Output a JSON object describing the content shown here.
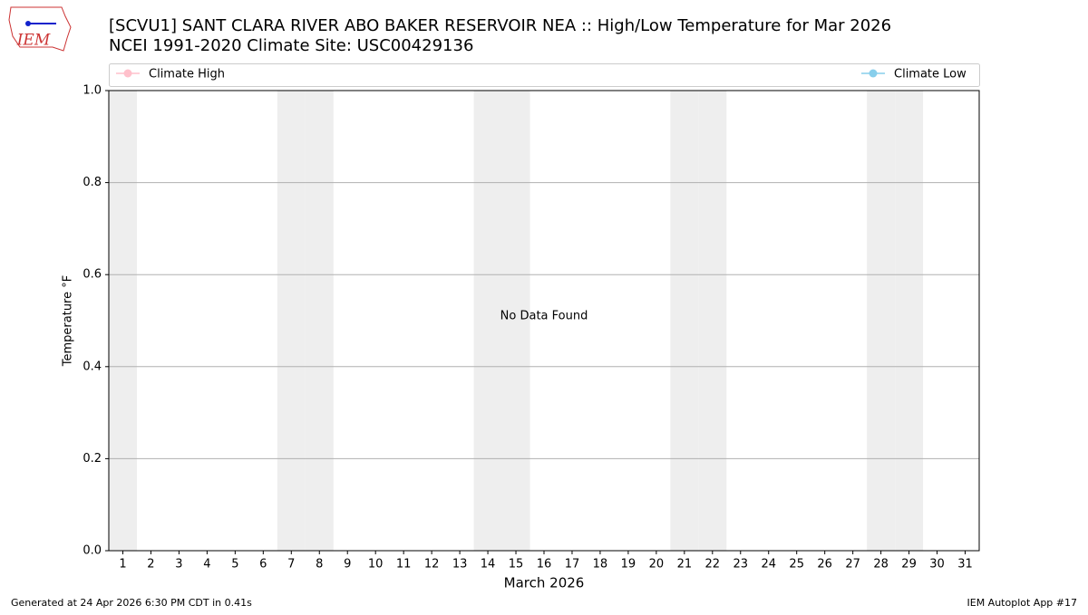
{
  "logo_text": "IEM",
  "chart_data": {
    "type": "line",
    "title": "[SCVU1] SANT CLARA RIVER ABO BAKER RESERVOIR NEA :: High/Low Temperature for Mar 2026",
    "subtitle": "NCEI 1991-2020 Climate Site: USC00429136",
    "x_label": "March 2026",
    "y_label": "Temperature °F",
    "annotation": "No Data Found",
    "x": [
      1,
      2,
      3,
      4,
      5,
      6,
      7,
      8,
      9,
      10,
      11,
      12,
      13,
      14,
      15,
      16,
      17,
      18,
      19,
      20,
      21,
      22,
      23,
      24,
      25,
      26,
      27,
      28,
      29,
      30,
      31
    ],
    "xlim": [
      0.5,
      31.5
    ],
    "ylim": [
      0,
      1
    ],
    "yticks": [
      {
        "value": 0,
        "label": "0.0"
      },
      0.2,
      0.4,
      0.6,
      0.8,
      {
        "value": 1,
        "label": "1.0"
      }
    ],
    "grid": true,
    "series": [
      {
        "name": "Climate High",
        "color": "pink",
        "values": [
          null,
          null,
          null,
          null,
          null,
          null,
          null,
          null,
          null,
          null,
          null,
          null,
          null,
          null,
          null,
          null,
          null,
          null,
          null,
          null,
          null,
          null,
          null,
          null,
          null,
          null,
          null,
          null,
          null,
          null,
          null
        ]
      },
      {
        "name": "Climate Low",
        "color": "skyblue",
        "values": [
          null,
          null,
          null,
          null,
          null,
          null,
          null,
          null,
          null,
          null,
          null,
          null,
          null,
          null,
          null,
          null,
          null,
          null,
          null,
          null,
          null,
          null,
          null,
          null,
          null,
          null,
          null,
          null,
          null,
          null,
          null
        ]
      }
    ],
    "footer_left": "Generated at 24 Apr 2026 6:30 PM CDT in 0.41s",
    "footer_right": "IEM Autoplot App #17"
  }
}
